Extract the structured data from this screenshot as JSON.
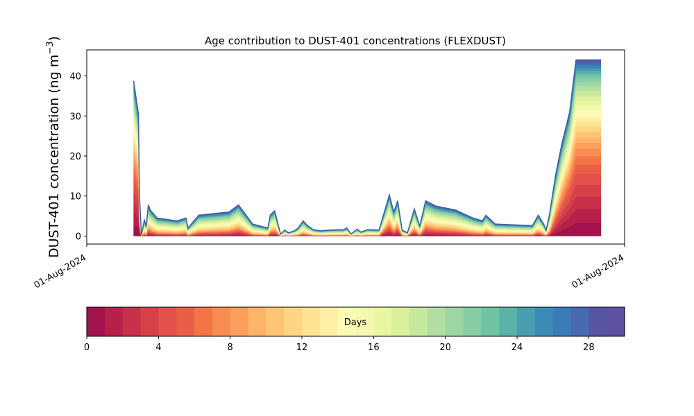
{
  "chart_data": {
    "type": "area",
    "title": "Age contribution to DUST-401 concentrations (FLEXDUST)",
    "xlabel": "",
    "ylabel": "DUST-401 concentration (ng m",
    "ylabel_superscript": "−3",
    "ylabel_close": ")",
    "stacking": "stacked by age class (days), youngest at bottom",
    "x_range_fraction": [
      0.0,
      1.0
    ],
    "x_tick_labels": [
      "01-Aug-2024",
      "01-Aug-2024"
    ],
    "ylim": [
      -2,
      46.5
    ],
    "y_ticks": [
      0,
      10,
      20,
      30,
      40
    ],
    "grid": false,
    "total_concentration": {
      "x": [
        0.046,
        0.056,
        0.058,
        0.062,
        0.068,
        0.072,
        0.076,
        0.08,
        0.094,
        0.135,
        0.153,
        0.157,
        0.179,
        0.241,
        0.26,
        0.289,
        0.32,
        0.325,
        0.334,
        0.346,
        0.355,
        0.362,
        0.374,
        0.382,
        0.392,
        0.401,
        0.413,
        0.427,
        0.446,
        0.475,
        0.481,
        0.49,
        0.502,
        0.51,
        0.523,
        0.547,
        0.568,
        0.577,
        0.585,
        0.594,
        0.605,
        0.619,
        0.63,
        0.642,
        0.663,
        0.703,
        0.739,
        0.758,
        0.765,
        0.784,
        0.86,
        0.872,
        0.883,
        0.888,
        0.895,
        0.907,
        0.92,
        0.936,
        0.949,
        0.958,
        0.965,
        0.97,
        0.977,
        0.985,
        0.992,
        1.0
      ],
      "total": [
        38.8,
        30.5,
        10.5,
        0.3,
        4.0,
        2.5,
        7.8,
        6.5,
        4.5,
        3.8,
        4.5,
        2.0,
        5.2,
        6.0,
        7.8,
        3.0,
        2.0,
        5.3,
        6.3,
        0.5,
        1.5,
        0.8,
        1.3,
        2.0,
        3.8,
        2.6,
        1.6,
        1.3,
        1.5,
        1.6,
        2.0,
        0.5,
        1.7,
        1.0,
        1.6,
        1.5,
        10.3,
        6.0,
        8.8,
        1.5,
        0.8,
        6.8,
        2.5,
        8.8,
        7.5,
        6.5,
        4.5,
        3.8,
        5.2,
        3.0,
        2.6,
        5.2,
        3.0,
        1.5,
        5.5,
        15.0,
        23.0,
        31.0,
        44.0,
        44.0,
        44.0,
        44.0,
        44.0,
        44.0,
        44.0,
        44.0
      ]
    },
    "age_class_share_profile_note": "young (red) classes dominate high peaks; mid (yellow-green) and old (blue) classes dominate the low-concentration plateau",
    "colorbar": {
      "label": "Days",
      "range": [
        0,
        30
      ],
      "ticks": [
        "0",
        "4",
        "8",
        "12",
        "16",
        "20",
        "24",
        "28"
      ],
      "tick_values": [
        0,
        4,
        8,
        12,
        16,
        20,
        24,
        28
      ],
      "colors": [
        "#a2124b",
        "#b72048",
        "#c63048",
        "#d54149",
        "#e2514b",
        "#ea5e47",
        "#f57446",
        "#f88d53",
        "#fa9e5a",
        "#fdb466",
        "#fdc675",
        "#fed583",
        "#fee393",
        "#fff0a6",
        "#fdfab6",
        "#f3fab0",
        "#eaf7a1",
        "#dbf09b",
        "#c7e89f",
        "#b2dfa1",
        "#9cd6a4",
        "#86cea4",
        "#6fc4a4",
        "#5bb2a9",
        "#499ead",
        "#3a8cb6",
        "#3b7cb7",
        "#4769b0",
        "#5555a3",
        "#5e4fa2"
      ]
    },
    "colors": {
      "total_line": "#3a63a8",
      "axis": "#000000"
    }
  }
}
